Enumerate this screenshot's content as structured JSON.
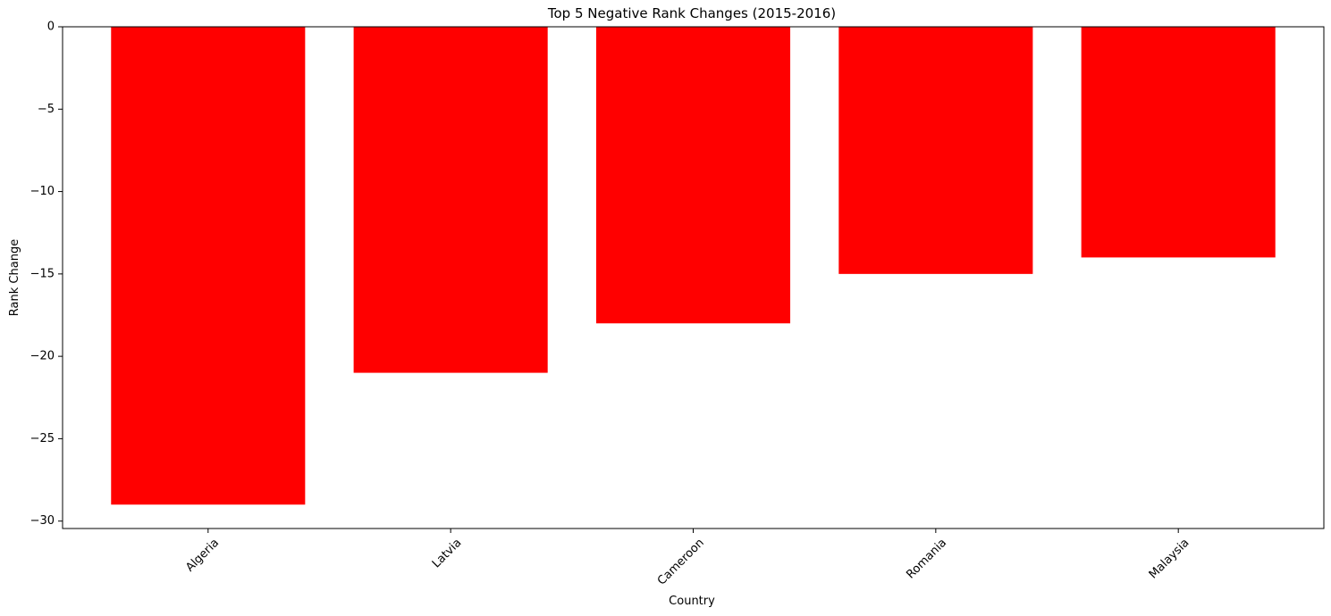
{
  "chart_data": {
    "type": "bar",
    "title": "Top 5 Negative Rank Changes (2015-2016)",
    "xlabel": "Country",
    "ylabel": "Rank Change",
    "categories": [
      "Algeria",
      "Latvia",
      "Cameroon",
      "Romania",
      "Malaysia"
    ],
    "values": [
      -29,
      -21,
      -18,
      -15,
      -14
    ],
    "ylim": [
      -30.45,
      0
    ],
    "yticks": [
      0,
      -5,
      -10,
      -15,
      -20,
      -25,
      -30
    ],
    "ytick_labels": [
      "0",
      "−5",
      "−10",
      "−15",
      "−20",
      "−25",
      "−30"
    ],
    "bar_color": "#ff0000",
    "x_tick_rotation_degrees": 45,
    "grid": false,
    "legend": "none"
  }
}
